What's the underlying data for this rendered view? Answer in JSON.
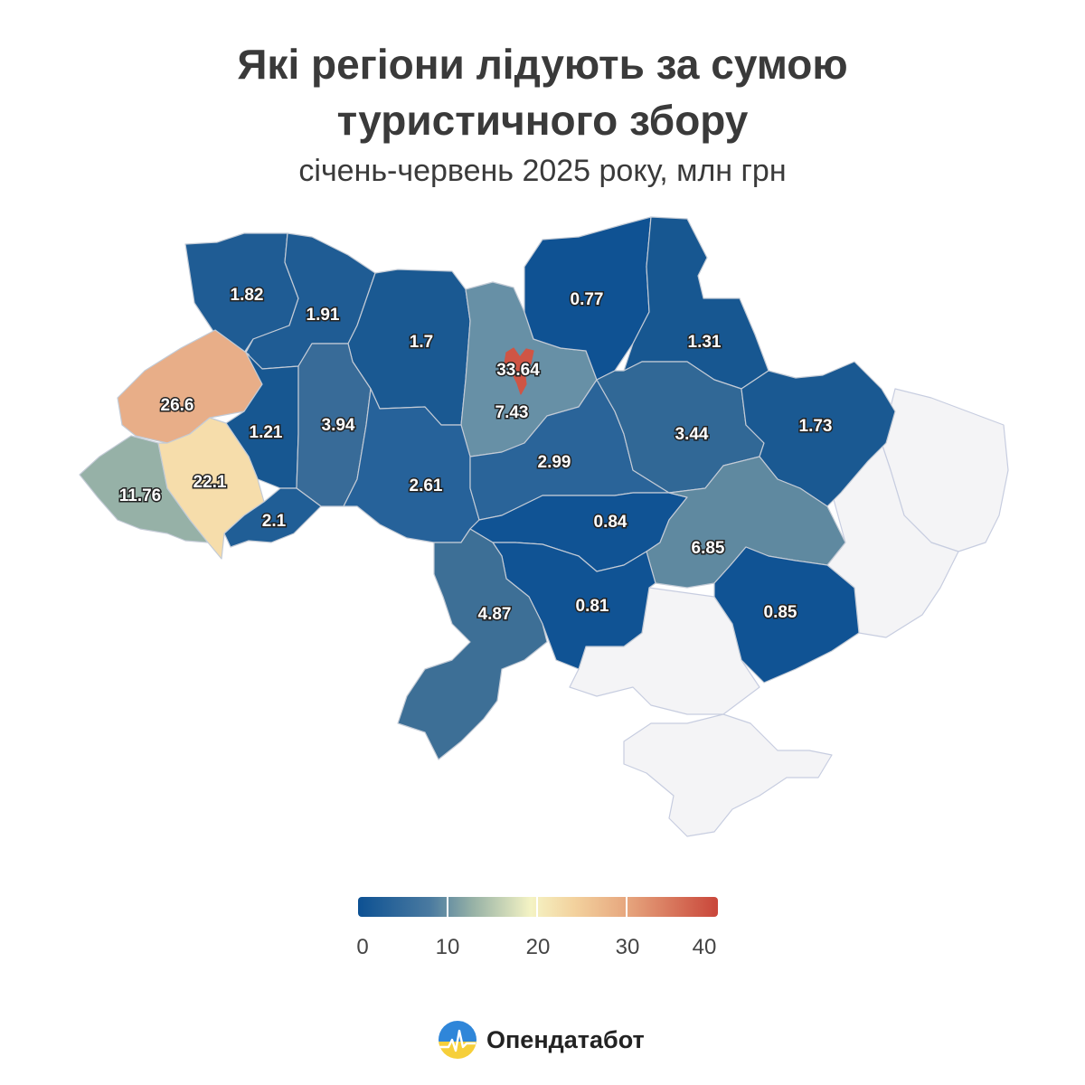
{
  "title_line1": "Які регіони лідують за сумою",
  "title_line2": "туристичного збору",
  "subtitle": "січень-червень 2025 року, млн грн",
  "legend": {
    "ticks": [
      "0",
      "10",
      "20",
      "30",
      "40"
    ],
    "min": 0,
    "max": 40
  },
  "brand": {
    "name": "Опендатабот",
    "icon": "opendatabot-logo-icon"
  },
  "chart_data": {
    "type": "choropleth",
    "unit": "млн грн",
    "regions": [
      {
        "key": "volyn",
        "value": 1.82,
        "color": "#1f5c94"
      },
      {
        "key": "rivne",
        "value": 1.91,
        "color": "#1f5c94"
      },
      {
        "key": "zhytomyr",
        "value": 1.7,
        "color": "#1a5992"
      },
      {
        "key": "kyiv-oblast",
        "value": 7.43,
        "color": "#6790a6"
      },
      {
        "key": "kyiv-city",
        "value": 33.64,
        "color": "#cf5545"
      },
      {
        "key": "chernihiv",
        "value": 0.77,
        "color": "#0f5293"
      },
      {
        "key": "sumy",
        "value": 1.31,
        "color": "#175791"
      },
      {
        "key": "lviv",
        "value": 26.6,
        "color": "#e8ae88"
      },
      {
        "key": "ternopil",
        "value": 1.21,
        "color": "#175791"
      },
      {
        "key": "khmelnytskyi",
        "value": 3.94,
        "color": "#386b98"
      },
      {
        "key": "vinnytsia",
        "value": 2.61,
        "color": "#26629a"
      },
      {
        "key": "cherkasy",
        "value": 2.99,
        "color": "#2a6499"
      },
      {
        "key": "poltava",
        "value": 3.44,
        "color": "#316896"
      },
      {
        "key": "kharkiv",
        "value": 1.73,
        "color": "#1a5992"
      },
      {
        "key": "zakarpattia",
        "value": 11.76,
        "color": "#96b1a7"
      },
      {
        "key": "ivano-frankivsk",
        "value": 22.1,
        "color": "#f6ddab"
      },
      {
        "key": "chernivtsi",
        "value": 2.1,
        "color": "#205e96"
      },
      {
        "key": "kirovohrad",
        "value": 0.84,
        "color": "#105394"
      },
      {
        "key": "dnipropetrovsk",
        "value": 6.85,
        "color": "#5f89a0"
      },
      {
        "key": "mykolaiv",
        "value": 0.81,
        "color": "#105394"
      },
      {
        "key": "zaporizhzhia",
        "value": 0.85,
        "color": "#105394"
      },
      {
        "key": "odesa",
        "value": 4.87,
        "color": "#3d6f96"
      }
    ],
    "no_data_regions": [
      "donetsk",
      "luhansk",
      "kherson",
      "crimea"
    ]
  }
}
